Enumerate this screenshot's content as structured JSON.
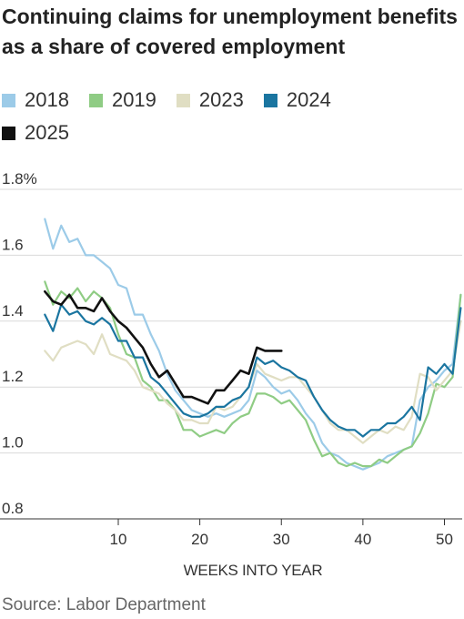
{
  "chart_data": {
    "type": "line",
    "title": "Continuing claims for unemployment benefits as a share of covered employment",
    "xlabel": "WEEKS INTO YEAR",
    "ylabel": "",
    "ylim": [
      0.8,
      1.8
    ],
    "xlim": [
      1,
      52
    ],
    "x_ticks": [
      10,
      20,
      30,
      40,
      50
    ],
    "y_ticks": [
      {
        "value": 0.8,
        "label": "0.8"
      },
      {
        "value": 1.0,
        "label": "1.0"
      },
      {
        "value": 1.2,
        "label": "1.2"
      },
      {
        "value": 1.4,
        "label": "1.4"
      },
      {
        "value": 1.6,
        "label": "1.6"
      },
      {
        "value": 1.8,
        "label": "1.8%"
      }
    ],
    "grid": "horizontal",
    "legend_position": "top-left",
    "source": "Source: Labor Department",
    "series": [
      {
        "name": "2018",
        "color": "#9ccbe8",
        "x_start": 1,
        "values": [
          1.71,
          1.62,
          1.69,
          1.64,
          1.65,
          1.6,
          1.6,
          1.58,
          1.56,
          1.51,
          1.5,
          1.42,
          1.42,
          1.36,
          1.31,
          1.24,
          1.19,
          1.16,
          1.13,
          1.12,
          1.11,
          1.12,
          1.11,
          1.12,
          1.13,
          1.16,
          1.25,
          1.23,
          1.2,
          1.18,
          1.19,
          1.16,
          1.12,
          1.09,
          1.03,
          1.0,
          0.99,
          0.97,
          0.96,
          0.95,
          0.96,
          0.97,
          0.99,
          1.0,
          1.01,
          1.02,
          1.16,
          1.2,
          1.22,
          1.25,
          1.27,
          1.48
        ]
      },
      {
        "name": "2019",
        "color": "#8fcc84",
        "x_start": 1,
        "values": [
          1.52,
          1.45,
          1.49,
          1.47,
          1.5,
          1.46,
          1.49,
          1.47,
          1.44,
          1.36,
          1.3,
          1.29,
          1.22,
          1.2,
          1.16,
          1.16,
          1.13,
          1.07,
          1.07,
          1.05,
          1.06,
          1.07,
          1.06,
          1.09,
          1.11,
          1.12,
          1.18,
          1.18,
          1.17,
          1.15,
          1.16,
          1.13,
          1.1,
          1.04,
          0.99,
          1.0,
          0.97,
          0.96,
          0.97,
          0.96,
          0.96,
          0.98,
          0.97,
          0.99,
          1.01,
          1.02,
          1.06,
          1.12,
          1.21,
          1.2,
          1.23,
          1.48
        ]
      },
      {
        "name": "2023",
        "color": "#e0dec3",
        "x_start": 1,
        "values": [
          1.31,
          1.28,
          1.32,
          1.33,
          1.34,
          1.33,
          1.3,
          1.36,
          1.3,
          1.29,
          1.28,
          1.25,
          1.2,
          1.19,
          1.18,
          1.15,
          1.13,
          1.1,
          1.1,
          1.09,
          1.09,
          1.14,
          1.13,
          1.14,
          1.17,
          1.2,
          1.27,
          1.24,
          1.23,
          1.22,
          1.23,
          1.23,
          1.2,
          1.17,
          1.13,
          1.09,
          1.07,
          1.07,
          1.05,
          1.03,
          1.05,
          1.07,
          1.06,
          1.08,
          1.07,
          1.11,
          1.24,
          1.23,
          1.19,
          1.22,
          1.25,
          1.4
        ]
      },
      {
        "name": "2024",
        "color": "#1a75a0",
        "x_start": 1,
        "values": [
          1.42,
          1.37,
          1.45,
          1.42,
          1.43,
          1.4,
          1.39,
          1.41,
          1.39,
          1.34,
          1.34,
          1.29,
          1.29,
          1.23,
          1.21,
          1.18,
          1.15,
          1.12,
          1.11,
          1.11,
          1.12,
          1.14,
          1.14,
          1.16,
          1.17,
          1.2,
          1.29,
          1.27,
          1.28,
          1.26,
          1.25,
          1.23,
          1.22,
          1.17,
          1.13,
          1.1,
          1.08,
          1.07,
          1.07,
          1.05,
          1.07,
          1.07,
          1.09,
          1.09,
          1.11,
          1.14,
          1.1,
          1.26,
          1.24,
          1.27,
          1.24,
          1.44
        ]
      },
      {
        "name": "2025",
        "color": "#111111",
        "x_start": 1,
        "values": [
          1.49,
          1.46,
          1.45,
          1.48,
          1.44,
          1.44,
          1.43,
          1.47,
          1.43,
          1.4,
          1.38,
          1.35,
          1.32,
          1.27,
          1.23,
          1.25,
          1.21,
          1.17,
          1.17,
          1.16,
          1.15,
          1.19,
          1.19,
          1.22,
          1.25,
          1.24,
          1.32,
          1.31,
          1.31,
          1.31
        ]
      }
    ]
  }
}
